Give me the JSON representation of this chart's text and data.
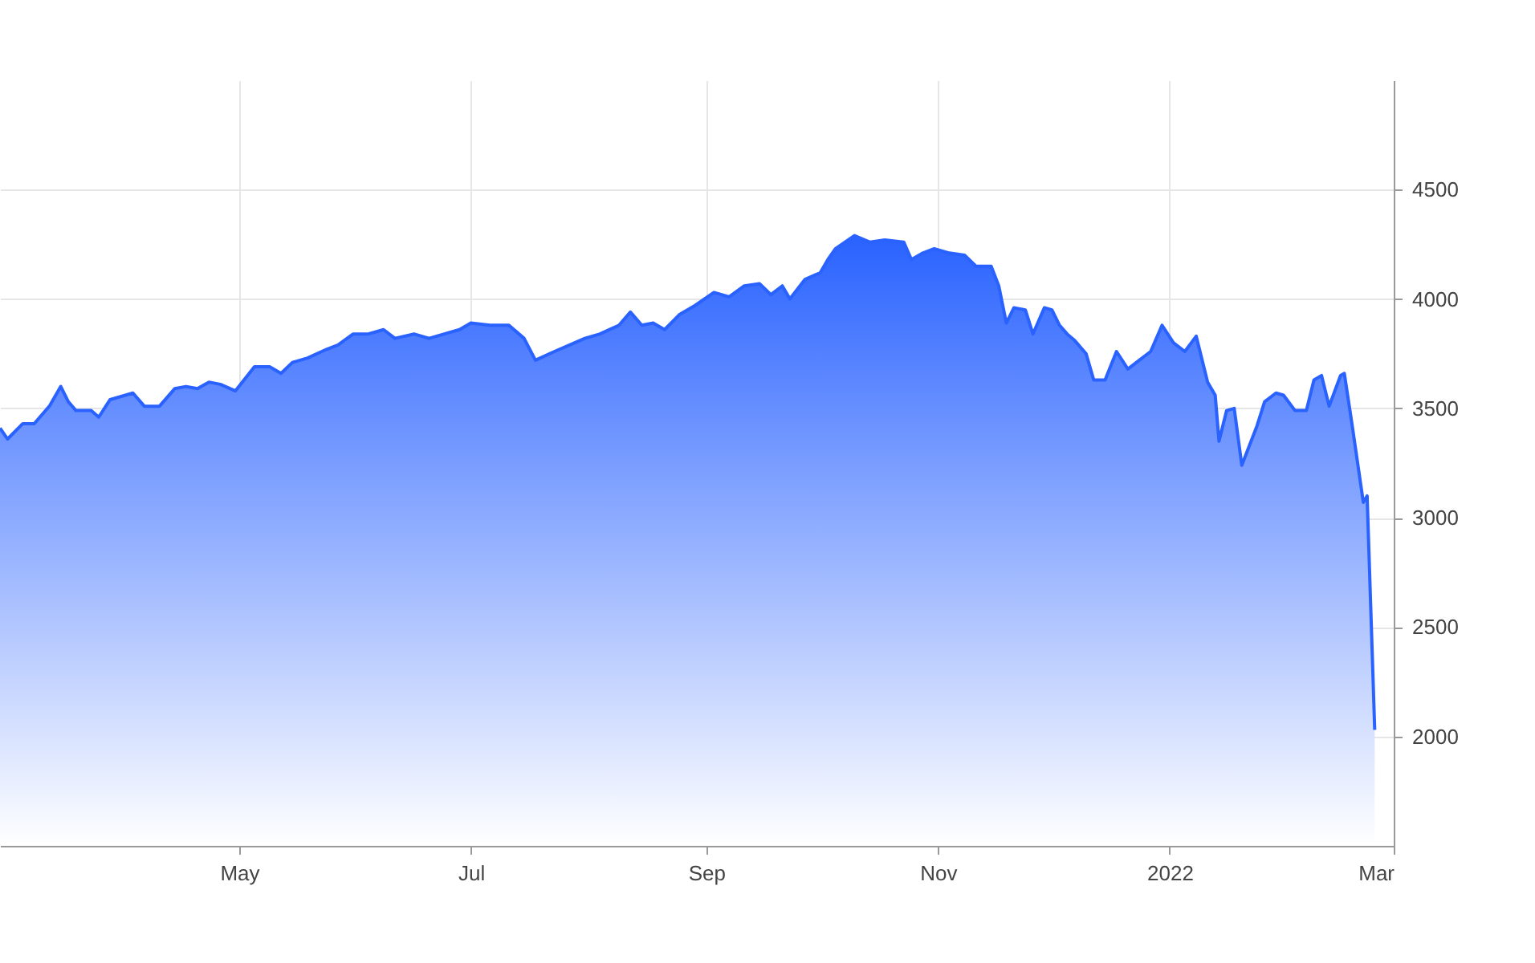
{
  "chart_data": {
    "type": "area",
    "xlim": [
      "2021-02-27",
      "2022-03-01"
    ],
    "ylim": [
      1500,
      5000
    ],
    "xticks": [
      {
        "value": "2021-05-01",
        "label": "May"
      },
      {
        "value": "2021-07-01",
        "label": "Jul"
      },
      {
        "value": "2021-09-01",
        "label": "Sep"
      },
      {
        "value": "2021-11-01",
        "label": "Nov"
      },
      {
        "value": "2022-01-01",
        "label": "2022"
      },
      {
        "value": "2022-03-01",
        "label": "Mar"
      }
    ],
    "yticks": [
      2000,
      2500,
      3000,
      3500,
      4000,
      4500
    ],
    "grid": true,
    "series": [
      {
        "color": "#2962ff",
        "x": [
          "2021-02-27",
          "2021-03-01",
          "2021-03-05",
          "2021-03-08",
          "2021-03-12",
          "2021-03-15",
          "2021-03-17",
          "2021-03-19",
          "2021-03-23",
          "2021-03-25",
          "2021-03-28",
          "2021-04-03",
          "2021-04-06",
          "2021-04-10",
          "2021-04-14",
          "2021-04-17",
          "2021-04-20",
          "2021-04-23",
          "2021-04-26",
          "2021-04-30",
          "2021-05-05",
          "2021-05-09",
          "2021-05-12",
          "2021-05-15",
          "2021-05-19",
          "2021-05-24",
          "2021-05-27",
          "2021-05-31",
          "2021-06-04",
          "2021-06-08",
          "2021-06-11",
          "2021-06-16",
          "2021-06-20",
          "2021-06-24",
          "2021-06-28",
          "2021-07-01",
          "2021-07-06",
          "2021-07-11",
          "2021-07-15",
          "2021-07-18",
          "2021-07-23",
          "2021-07-27",
          "2021-07-31",
          "2021-08-04",
          "2021-08-09",
          "2021-08-12",
          "2021-08-15",
          "2021-08-18",
          "2021-08-21",
          "2021-08-25",
          "2021-08-29",
          "2021-09-03",
          "2021-09-07",
          "2021-09-11",
          "2021-09-15",
          "2021-09-18",
          "2021-09-21",
          "2021-09-23",
          "2021-09-27",
          "2021-10-01",
          "2021-10-03",
          "2021-10-05",
          "2021-10-10",
          "2021-10-14",
          "2021-10-18",
          "2021-10-23",
          "2021-10-25",
          "2021-10-28",
          "2021-10-31",
          "2021-11-04",
          "2021-11-08",
          "2021-11-11",
          "2021-11-15",
          "2021-11-17",
          "2021-11-19",
          "2021-11-21",
          "2021-11-24",
          "2021-11-26",
          "2021-11-29",
          "2021-12-01",
          "2021-12-03",
          "2021-12-05",
          "2021-12-07",
          "2021-12-10",
          "2021-12-12",
          "2021-12-15",
          "2021-12-18",
          "2021-12-21",
          "2021-12-24",
          "2021-12-27",
          "2021-12-30",
          "2022-01-02",
          "2022-01-05",
          "2022-01-08",
          "2022-01-11",
          "2022-01-13",
          "2022-01-14",
          "2022-01-16",
          "2022-01-18",
          "2022-01-20",
          "2022-01-24",
          "2022-01-26",
          "2022-01-29",
          "2022-01-31",
          "2022-02-03",
          "2022-02-06",
          "2022-02-08",
          "2022-02-10",
          "2022-02-12",
          "2022-02-15",
          "2022-02-16",
          "2022-02-18",
          "2022-02-21",
          "2022-02-22",
          "2022-02-24"
        ],
        "values": [
          3410,
          3360,
          3430,
          3430,
          3510,
          3600,
          3530,
          3490,
          3490,
          3460,
          3540,
          3570,
          3510,
          3510,
          3590,
          3600,
          3590,
          3620,
          3610,
          3580,
          3690,
          3690,
          3660,
          3710,
          3730,
          3770,
          3790,
          3840,
          3840,
          3860,
          3820,
          3840,
          3820,
          3840,
          3860,
          3890,
          3880,
          3880,
          3820,
          3720,
          3760,
          3790,
          3820,
          3840,
          3880,
          3940,
          3880,
          3890,
          3860,
          3930,
          3970,
          4030,
          4010,
          4060,
          4070,
          4020,
          4060,
          4000,
          4090,
          4120,
          4180,
          4230,
          4290,
          4260,
          4270,
          4260,
          4180,
          4210,
          4230,
          4210,
          4200,
          4150,
          4150,
          4060,
          3890,
          3960,
          3950,
          3840,
          3960,
          3950,
          3880,
          3840,
          3810,
          3750,
          3630,
          3630,
          3760,
          3680,
          3720,
          3760,
          3880,
          3800,
          3760,
          3830,
          3620,
          3560,
          3350,
          3490,
          3500,
          3240,
          3420,
          3530,
          3570,
          3560,
          3490,
          3490,
          3630,
          3650,
          3510,
          3650,
          3660,
          3430,
          3070,
          3100,
          2030
        ]
      }
    ]
  }
}
